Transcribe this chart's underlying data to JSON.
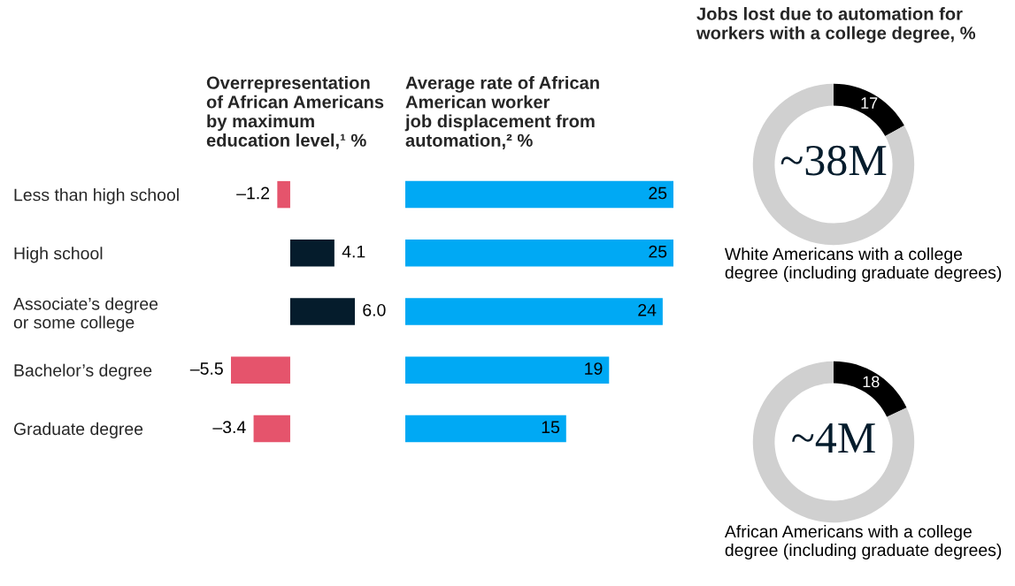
{
  "chart_data": [
    {
      "type": "bar",
      "orientation": "horizontal",
      "title": "Overrepresentation\nof African Americans\nby maximum\neducation level,¹ %",
      "categories": [
        "Less than high school",
        "High school",
        "Associate’s degree\nor some college",
        "Bachelor’s degree",
        "Graduate degree"
      ],
      "values": [
        -1.2,
        4.1,
        6.0,
        -5.5,
        -3.4
      ],
      "colors": [
        "#e5546c",
        "#051c2c",
        "#051c2c",
        "#e5546c",
        "#e5546c"
      ],
      "value_labels": [
        "–1.2",
        "4.1",
        "6.0",
        "–5.5",
        "–3.4"
      ],
      "tick_labels": "y",
      "grid": false
    },
    {
      "type": "bar",
      "orientation": "horizontal",
      "title": "Average rate of African\nAmerican worker\njob displacement from\nautomation,² %",
      "values": [
        25,
        25,
        24,
        19,
        15
      ],
      "colors": [
        "#00a9f4",
        "#00a9f4",
        "#00a9f4",
        "#00a9f4",
        "#00a9f4"
      ],
      "data_labels": true,
      "tick_labels": false,
      "grid": false
    },
    {
      "type": "donut",
      "title": "Jobs lost due to automation for\nworkers with a college degree, %",
      "categories": [
        null,
        null
      ],
      "values": [
        17,
        83
      ],
      "colors": [
        "#000000",
        "#d0d0d0"
      ],
      "value_labels": [
        "17",
        null
      ],
      "annotations": [
        "~38M",
        "White Americans with a college\ndegree (including graduate degrees)"
      ]
    },
    {
      "type": "donut",
      "categories": [
        null,
        null
      ],
      "values": [
        18,
        82
      ],
      "colors": [
        "#000000",
        "#d0d0d0"
      ],
      "value_labels": [
        "18",
        null
      ],
      "annotations": [
        "~4M",
        "African Americans with a college\ndegree (including graduate degrees)"
      ]
    }
  ]
}
